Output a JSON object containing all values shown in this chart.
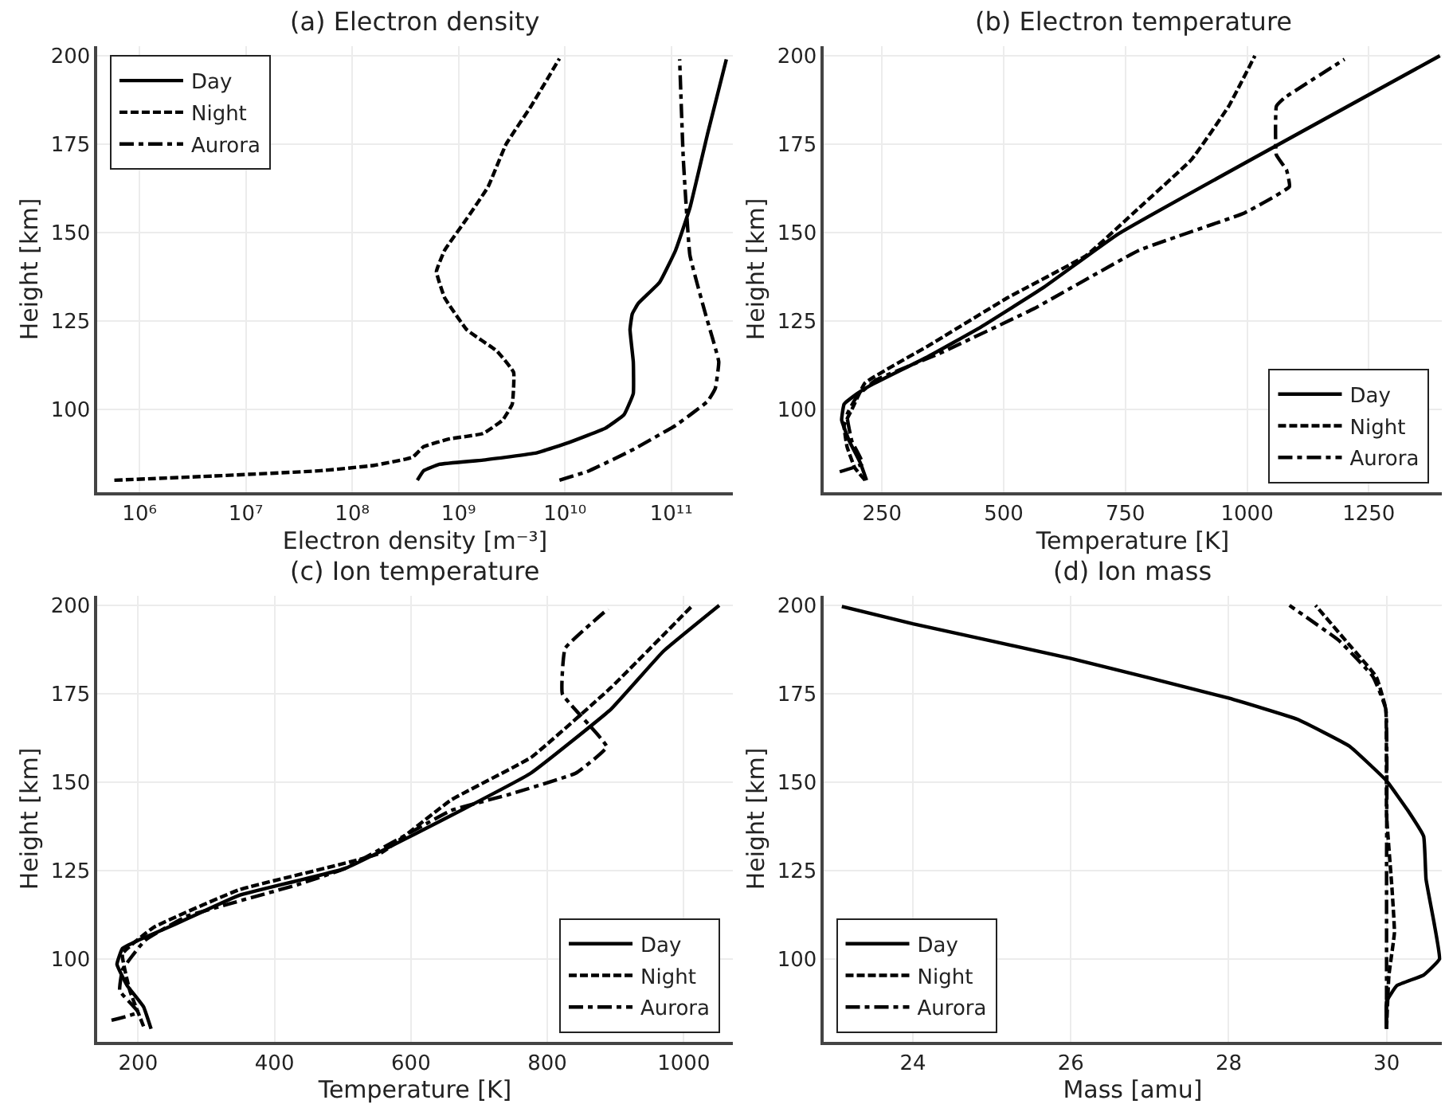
{
  "chart_data": [
    {
      "type": "line",
      "title": "(a) Electron density",
      "xlabel": "Electron density [m⁻³]",
      "ylabel": "Height [km]",
      "log": "x",
      "grid": true,
      "legend": "top left",
      "xlim": [
        400000.0,
        380000000000.0
      ],
      "xticks": [
        {
          "value": 1000000.0,
          "label": "10⁶"
        },
        {
          "value": 10000000.0,
          "label": "10⁷"
        },
        {
          "value": 100000000.0,
          "label": "10⁸"
        },
        {
          "value": 1000000000.0,
          "label": "10⁹"
        },
        {
          "value": 10000000000.0,
          "label": "10¹⁰"
        },
        {
          "value": 100000000000.0,
          "label": "10¹¹"
        }
      ],
      "ylim": [
        76.6,
        202.7
      ],
      "yticks": [
        100,
        125,
        150,
        175,
        200
      ],
      "series": [
        {
          "name": "Day",
          "color": "#000000",
          "line_style": "solid",
          "x": [
            410000000.0,
            470000000.0,
            660000000.0,
            1700000000.0,
            5400000000.0,
            11000000000.0,
            24000000000.0,
            36000000000.0,
            44000000000.0,
            44000000000.0,
            41000000000.0,
            43000000000.0,
            49000000000.0,
            78000000000.0,
            110000000000.0,
            150000000000.0,
            220000000000.0,
            330000000000.0
          ],
          "values": [
            80,
            82.7,
            84.5,
            85.7,
            87.7,
            90.7,
            94.7,
            98.5,
            104.5,
            113.5,
            122.6,
            127,
            130,
            136,
            145,
            157,
            178,
            199
          ]
        },
        {
          "name": "Night",
          "color": "#000000",
          "line_style": "dashed",
          "x": [
            580000.0,
            5000000.0,
            51000000.0,
            160000000.0,
            370000000.0,
            470000000.0,
            830000000.0,
            1700000000.0,
            2600000000.0,
            3200000000.0,
            3300000000.0,
            2300000000.0,
            1200000000.0,
            740000000.0,
            620000000.0,
            740000000.0,
            1200000000.0,
            1900000000.0,
            2800000000.0,
            4800000000.0,
            8900000000.0
          ],
          "values": [
            80,
            81.2,
            82.7,
            84.2,
            86.5,
            89.5,
            91.7,
            93.2,
            97,
            101.5,
            110.5,
            116.5,
            122.5,
            131.6,
            139,
            145,
            154,
            163,
            175,
            185.7,
            199.2
          ]
        },
        {
          "name": "Aurora",
          "color": "#000000",
          "line_style": "dashdot",
          "x": [
            8900000000.0,
            17000000000.0,
            44000000000.0,
            110000000000.0,
            220000000000.0,
            260000000000.0,
            280000000000.0,
            210000000000.0,
            150000000000.0,
            130000000000.0,
            120000000000.0
          ],
          "values": [
            80,
            82.7,
            88.7,
            95.5,
            102.3,
            106,
            113.5,
            127,
            143.6,
            170.7,
            199
          ]
        }
      ]
    },
    {
      "type": "line",
      "title": "(b) Electron temperature",
      "xlabel": "Temperature [K]",
      "ylabel": "Height [km]",
      "grid": true,
      "legend": "bottom right",
      "xlim": [
        130,
        1400
      ],
      "xticks": [
        250,
        500,
        750,
        1000,
        1250
      ],
      "ylim": [
        76.6,
        202.7
      ],
      "yticks": [
        100,
        125,
        150,
        175,
        200
      ],
      "series": [
        {
          "name": "Day",
          "color": "#000000",
          "line_style": "solid",
          "x": [
            218,
            205,
            183,
            167,
            172,
            199,
            226,
            345,
            453,
            583,
            735,
            1396
          ],
          "values": [
            80,
            85,
            91,
            97,
            101.5,
            104.5,
            106.8,
            115,
            123.3,
            134.6,
            149.6,
            200
          ]
        },
        {
          "name": "Night",
          "color": "#000000",
          "line_style": "dashed",
          "x": [
            215,
            194,
            178,
            172,
            188,
            215,
            345,
            508,
            670,
            778,
            886,
            962,
            1016
          ],
          "values": [
            80,
            83.5,
            89.5,
            95.5,
            100,
            107.5,
            118,
            131.6,
            143.6,
            157,
            170.7,
            185.7,
            200
          ]
        },
        {
          "name": "Aurora",
          "color": "#000000",
          "line_style": "dashdot",
          "x": [
            163,
            210,
            188,
            178,
            199,
            237,
            367,
            562,
            778,
            995,
            1087,
            1081,
            1060,
            1060,
            1076,
            1200
          ],
          "values": [
            82.4,
            84.7,
            91,
            98.5,
            103.8,
            108.3,
            115.8,
            128.5,
            145,
            155.6,
            163,
            167.7,
            172,
            185.7,
            188,
            199
          ]
        }
      ]
    },
    {
      "type": "line",
      "title": "(c) Ion temperature",
      "xlabel": "Temperature [K]",
      "ylabel": "Height [km]",
      "grid": true,
      "legend": "bottom right",
      "xlim": [
        140,
        1072
      ],
      "xticks": [
        200,
        400,
        600,
        800,
        1000
      ],
      "ylim": [
        76.6,
        202.7
      ],
      "yticks": [
        100,
        125,
        150,
        175,
        200
      ],
      "series": [
        {
          "name": "Day",
          "color": "#000000",
          "line_style": "solid",
          "x": [
            219,
            208,
            184,
            169,
            177,
            200,
            254,
            348,
            503,
            659,
            776,
            893,
            970,
            1052
          ],
          "values": [
            80.3,
            86.5,
            92.5,
            98.5,
            103,
            105.3,
            109.8,
            118,
            125.6,
            140.6,
            152.6,
            170.6,
            187,
            200
          ]
        },
        {
          "name": "Night",
          "color": "#000000",
          "line_style": "dashed",
          "x": [
            208,
            188,
            177,
            223,
            348,
            556,
            659,
            776,
            893,
            1013
          ],
          "values": [
            81,
            91,
            101.5,
            109,
            119.6,
            130,
            145,
            157,
            176.7,
            200
          ]
        },
        {
          "name": "Aurora",
          "color": "#000000",
          "line_style": "dashdot",
          "x": [
            161,
            200,
            173,
            177,
            191,
            210,
            270,
            433,
            503,
            659,
            745,
            842,
            887,
            822,
            826,
            889
          ],
          "values": [
            82.7,
            85,
            91,
            97,
            100.8,
            105.3,
            112,
            121,
            125.6,
            142,
            146.6,
            152.6,
            160,
            175,
            187.8,
            199
          ]
        }
      ]
    },
    {
      "type": "line",
      "title": "(d) Ion mass",
      "xlabel": "Mass [amu]",
      "ylabel": "Height [km]",
      "grid": true,
      "legend": "bottom left",
      "xlim": [
        22.87,
        30.7
      ],
      "xticks": [
        24,
        26,
        28,
        30
      ],
      "ylim": [
        76.6,
        202.7
      ],
      "yticks": [
        100,
        125,
        150,
        175,
        200
      ],
      "series": [
        {
          "name": "Day",
          "color": "#000000",
          "line_style": "solid",
          "x": [
            30.0,
            30.0,
            30.13,
            30.47,
            30.67,
            30.6,
            30.5,
            30.47,
            30.27,
            30.0,
            29.53,
            28.87,
            28.0,
            26.0,
            24.0,
            23.1
          ],
          "values": [
            80.3,
            88,
            92.5,
            95.5,
            100,
            110.5,
            122.6,
            134.7,
            142,
            150.4,
            160.2,
            167.8,
            173.8,
            185,
            194.8,
            199.7
          ]
        },
        {
          "name": "Night",
          "color": "#000000",
          "line_style": "dashed",
          "x": [
            30.0,
            30.03,
            30.1,
            30.07,
            30.0,
            29.99,
            29.87,
            29.53,
            29.1
          ],
          "values": [
            80.3,
            95.5,
            107.5,
            119.6,
            140.7,
            170.7,
            179.8,
            188.8,
            200
          ]
        },
        {
          "name": "Aurora",
          "color": "#000000",
          "line_style": "dashdot",
          "x": [
            30.0,
            30.0,
            29.99,
            29.83,
            29.4,
            28.77
          ],
          "values": [
            80.3,
            125.6,
            170.7,
            179.8,
            190,
            200
          ]
        }
      ]
    }
  ]
}
